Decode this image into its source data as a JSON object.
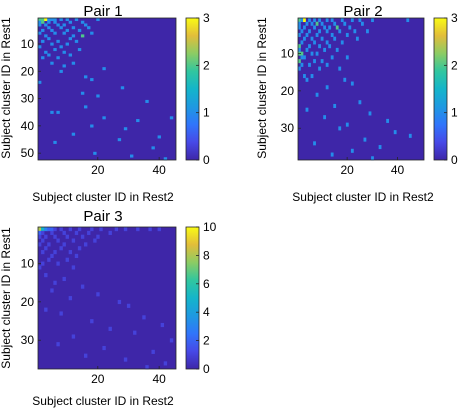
{
  "chart_data": [
    {
      "type": "heatmap",
      "title": "Pair 1",
      "xlabel": "Subject cluster ID in Rest2",
      "ylabel": "Subject cluster ID in Rest1",
      "x_range": [
        1,
        45
      ],
      "y_range": [
        1,
        52
      ],
      "x_ticks": [
        20,
        40
      ],
      "y_ticks": [
        10,
        20,
        30,
        40,
        50
      ],
      "colorbar": {
        "min": 0,
        "max": 3,
        "ticks": [
          0,
          1,
          2,
          3
        ]
      },
      "cells": [
        [
          1,
          1,
          2
        ],
        [
          2,
          1,
          2
        ],
        [
          3,
          1,
          3
        ],
        [
          4,
          1,
          1
        ],
        [
          5,
          1,
          1
        ],
        [
          6,
          1,
          1
        ],
        [
          8,
          1,
          1
        ],
        [
          10,
          1,
          1
        ],
        [
          13,
          1,
          1
        ],
        [
          20,
          1,
          1
        ],
        [
          1,
          2,
          1
        ],
        [
          2,
          2,
          2
        ],
        [
          4,
          2,
          1
        ],
        [
          6,
          2,
          1
        ],
        [
          11,
          2,
          1
        ],
        [
          15,
          2,
          1
        ],
        [
          1,
          3,
          1
        ],
        [
          3,
          3,
          1
        ],
        [
          7,
          3,
          1
        ],
        [
          9,
          3,
          1
        ],
        [
          16,
          3,
          1
        ],
        [
          4,
          4,
          1
        ],
        [
          8,
          4,
          1
        ],
        [
          12,
          4,
          1
        ],
        [
          17,
          4,
          1
        ],
        [
          2,
          5,
          1
        ],
        [
          5,
          5,
          1
        ],
        [
          10,
          5,
          1
        ],
        [
          14,
          5,
          1
        ],
        [
          1,
          6,
          1
        ],
        [
          6,
          6,
          1
        ],
        [
          9,
          6,
          1
        ],
        [
          18,
          6,
          1
        ],
        [
          3,
          7,
          1
        ],
        [
          12,
          7,
          1
        ],
        [
          15,
          7,
          2
        ],
        [
          4,
          8,
          1
        ],
        [
          11,
          8,
          1
        ],
        [
          2,
          9,
          1
        ],
        [
          7,
          9,
          1
        ],
        [
          13,
          9,
          1
        ],
        [
          5,
          10,
          1
        ],
        [
          10,
          10,
          1
        ],
        [
          1,
          11,
          1
        ],
        [
          8,
          11,
          1
        ],
        [
          6,
          12,
          1
        ],
        [
          14,
          12,
          1
        ],
        [
          3,
          13,
          1
        ],
        [
          9,
          13,
          1
        ],
        [
          4,
          14,
          1
        ],
        [
          11,
          14,
          1
        ],
        [
          2,
          15,
          1
        ],
        [
          7,
          15,
          1
        ],
        [
          5,
          17,
          1
        ],
        [
          12,
          17,
          1
        ],
        [
          9,
          18,
          1
        ],
        [
          22,
          19,
          1
        ],
        [
          8,
          20,
          1
        ],
        [
          16,
          22,
          1
        ],
        [
          18,
          23,
          1
        ],
        [
          1,
          24,
          1
        ],
        [
          28,
          26,
          1
        ],
        [
          15,
          28,
          1
        ],
        [
          20,
          29,
          1
        ],
        [
          36,
          31,
          1
        ],
        [
          5,
          35,
          1
        ],
        [
          7,
          35,
          1
        ],
        [
          16,
          33,
          1
        ],
        [
          22,
          37,
          1
        ],
        [
          33,
          38,
          1
        ],
        [
          18,
          40,
          1
        ],
        [
          29,
          41,
          1
        ],
        [
          44,
          37,
          1
        ],
        [
          12,
          43,
          1
        ],
        [
          27,
          45,
          1
        ],
        [
          40,
          44,
          1
        ],
        [
          6,
          46,
          1
        ],
        [
          38,
          48,
          1
        ],
        [
          19,
          50,
          1
        ],
        [
          31,
          51,
          1
        ],
        [
          42,
          52,
          1
        ]
      ]
    },
    {
      "type": "heatmap",
      "title": "Pair 2",
      "xlabel": "Subject cluster ID in Rest2",
      "ylabel": "Subject cluster ID in Rest1",
      "x_range": [
        1,
        50
      ],
      "y_range": [
        1,
        38
      ],
      "x_ticks": [
        20,
        40
      ],
      "y_ticks": [
        10,
        20,
        30
      ],
      "colorbar": {
        "min": 0,
        "max": 3,
        "ticks": [
          0,
          1,
          2,
          3
        ]
      },
      "cells": [
        [
          1,
          1,
          2
        ],
        [
          2,
          1,
          1
        ],
        [
          3,
          1,
          3
        ],
        [
          5,
          1,
          1
        ],
        [
          7,
          1,
          1
        ],
        [
          9,
          1,
          1
        ],
        [
          12,
          1,
          1
        ],
        [
          14,
          1,
          1
        ],
        [
          18,
          1,
          1
        ],
        [
          22,
          1,
          1
        ],
        [
          25,
          1,
          1
        ],
        [
          30,
          1,
          1
        ],
        [
          44,
          1,
          1
        ],
        [
          1,
          2,
          1
        ],
        [
          4,
          2,
          1
        ],
        [
          6,
          2,
          1
        ],
        [
          8,
          2,
          2
        ],
        [
          10,
          2,
          1
        ],
        [
          15,
          2,
          1
        ],
        [
          19,
          2,
          1
        ],
        [
          26,
          2,
          1
        ],
        [
          1,
          3,
          1
        ],
        [
          3,
          3,
          1
        ],
        [
          7,
          3,
          1
        ],
        [
          11,
          3,
          1
        ],
        [
          13,
          3,
          1
        ],
        [
          16,
          3,
          2
        ],
        [
          21,
          3,
          1
        ],
        [
          2,
          4,
          1
        ],
        [
          5,
          4,
          1
        ],
        [
          9,
          4,
          1
        ],
        [
          12,
          4,
          1
        ],
        [
          17,
          4,
          1
        ],
        [
          23,
          4,
          1
        ],
        [
          28,
          4,
          1
        ],
        [
          1,
          5,
          1
        ],
        [
          4,
          5,
          1
        ],
        [
          8,
          5,
          1
        ],
        [
          14,
          5,
          1
        ],
        [
          20,
          5,
          1
        ],
        [
          3,
          6,
          1
        ],
        [
          6,
          6,
          1
        ],
        [
          10,
          6,
          1
        ],
        [
          15,
          6,
          1
        ],
        [
          24,
          6,
          1
        ],
        [
          2,
          7,
          1
        ],
        [
          7,
          7,
          1
        ],
        [
          12,
          7,
          1
        ],
        [
          18,
          7,
          1
        ],
        [
          1,
          8,
          2
        ],
        [
          5,
          8,
          1
        ],
        [
          9,
          8,
          1
        ],
        [
          13,
          8,
          1
        ],
        [
          1,
          9,
          1
        ],
        [
          4,
          9,
          1
        ],
        [
          11,
          9,
          1
        ],
        [
          16,
          9,
          1
        ],
        [
          1,
          10,
          2
        ],
        [
          2,
          10,
          2
        ],
        [
          6,
          10,
          1
        ],
        [
          8,
          10,
          1
        ],
        [
          2,
          11,
          1
        ],
        [
          3,
          11,
          1
        ],
        [
          14,
          11,
          1
        ],
        [
          20,
          11,
          1
        ],
        [
          1,
          12,
          2
        ],
        [
          7,
          12,
          1
        ],
        [
          10,
          12,
          1
        ],
        [
          2,
          13,
          1
        ],
        [
          5,
          13,
          1
        ],
        [
          12,
          13,
          1
        ],
        [
          1,
          14,
          1
        ],
        [
          9,
          14,
          1
        ],
        [
          17,
          14,
          1
        ],
        [
          3,
          16,
          1
        ],
        [
          6,
          16,
          1
        ],
        [
          4,
          17,
          1
        ],
        [
          19,
          17,
          1
        ],
        [
          22,
          18,
          1
        ],
        [
          12,
          19,
          1
        ],
        [
          8,
          21,
          1
        ],
        [
          25,
          23,
          1
        ],
        [
          15,
          24,
          1
        ],
        [
          4,
          25,
          1
        ],
        [
          29,
          26,
          1
        ],
        [
          11,
          27,
          1
        ],
        [
          36,
          28,
          1
        ],
        [
          20,
          29,
          1
        ],
        [
          17,
          30,
          1
        ],
        [
          39,
          31,
          1
        ],
        [
          27,
          33,
          1
        ],
        [
          7,
          34,
          1
        ],
        [
          45,
          32,
          1
        ],
        [
          33,
          35,
          1
        ],
        [
          22,
          36,
          1
        ],
        [
          14,
          37,
          1
        ],
        [
          30,
          38,
          1
        ]
      ]
    },
    {
      "type": "heatmap",
      "title": "Pair 3",
      "xlabel": "Subject cluster ID in Rest2",
      "ylabel": "Subject cluster ID in Rest1",
      "x_range": [
        1,
        45
      ],
      "y_range": [
        1,
        37
      ],
      "x_ticks": [
        20,
        40
      ],
      "y_ticks": [
        10,
        20,
        30
      ],
      "colorbar": {
        "min": 0,
        "max": 10,
        "ticks": [
          0,
          2,
          4,
          6,
          8,
          10
        ]
      },
      "cells": [
        [
          1,
          1,
          8
        ],
        [
          2,
          1,
          5
        ],
        [
          3,
          1,
          3
        ],
        [
          4,
          1,
          2
        ],
        [
          5,
          1,
          2
        ],
        [
          6,
          1,
          1
        ],
        [
          8,
          1,
          1
        ],
        [
          11,
          1,
          1
        ],
        [
          14,
          1,
          1
        ],
        [
          18,
          1,
          1
        ],
        [
          21,
          1,
          1
        ],
        [
          26,
          1,
          1
        ],
        [
          29,
          1,
          1
        ],
        [
          33,
          1,
          1
        ],
        [
          37,
          1,
          1
        ],
        [
          40,
          1,
          1
        ],
        [
          1,
          2,
          2
        ],
        [
          2,
          2,
          1
        ],
        [
          5,
          2,
          1
        ],
        [
          9,
          2,
          1
        ],
        [
          13,
          2,
          1
        ],
        [
          17,
          2,
          1
        ],
        [
          24,
          2,
          1
        ],
        [
          1,
          3,
          1
        ],
        [
          3,
          3,
          1
        ],
        [
          6,
          3,
          1
        ],
        [
          10,
          3,
          1
        ],
        [
          15,
          3,
          1
        ],
        [
          20,
          3,
          1
        ],
        [
          2,
          4,
          1
        ],
        [
          7,
          4,
          1
        ],
        [
          12,
          4,
          1
        ],
        [
          19,
          4,
          1
        ],
        [
          1,
          5,
          1
        ],
        [
          4,
          5,
          1
        ],
        [
          9,
          5,
          1
        ],
        [
          16,
          5,
          1
        ],
        [
          3,
          6,
          1
        ],
        [
          8,
          6,
          1
        ],
        [
          14,
          6,
          1
        ],
        [
          2,
          7,
          1
        ],
        [
          6,
          7,
          1
        ],
        [
          11,
          7,
          1
        ],
        [
          5,
          8,
          1
        ],
        [
          13,
          8,
          1
        ],
        [
          4,
          9,
          1
        ],
        [
          10,
          9,
          1
        ],
        [
          2,
          10,
          1
        ],
        [
          7,
          10,
          1
        ],
        [
          1,
          11,
          1
        ],
        [
          12,
          11,
          1
        ],
        [
          3,
          13,
          1
        ],
        [
          9,
          14,
          1
        ],
        [
          6,
          15,
          1
        ],
        [
          15,
          16,
          1
        ],
        [
          5,
          17,
          1
        ],
        [
          20,
          18,
          1
        ],
        [
          11,
          19,
          1
        ],
        [
          27,
          20,
          1
        ],
        [
          30,
          21,
          1
        ],
        [
          3,
          22,
          1
        ],
        [
          8,
          23,
          1
        ],
        [
          35,
          24,
          1
        ],
        [
          18,
          25,
          1
        ],
        [
          41,
          26,
          1
        ],
        [
          24,
          27,
          1
        ],
        [
          32,
          28,
          1
        ],
        [
          12,
          29,
          1
        ],
        [
          44,
          30,
          1
        ],
        [
          7,
          31,
          1
        ],
        [
          22,
          32,
          1
        ],
        [
          38,
          33,
          1
        ],
        [
          16,
          34,
          1
        ],
        [
          29,
          35,
          1
        ],
        [
          42,
          36,
          1
        ],
        [
          36,
          37,
          1
        ]
      ]
    }
  ]
}
